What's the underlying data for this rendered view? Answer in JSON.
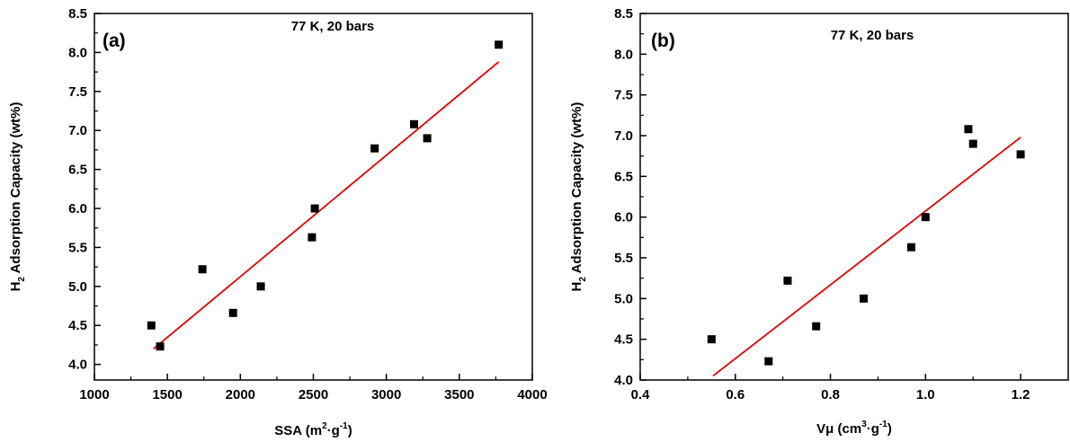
{
  "chart_data": [
    {
      "type": "scatter",
      "panel_label": "(a)",
      "annotation": "77 K, 20 bars",
      "xlabel": {
        "main": "SSA (m",
        "sup1": "2",
        "mid": "·g",
        "sup2": "-1",
        "end": ")"
      },
      "ylabel": {
        "pre": "H",
        "sub": "2",
        "post": " Adsorption Capacity (wt%)"
      },
      "xlim": [
        1000,
        4000
      ],
      "ylim": [
        3.8,
        8.5
      ],
      "xticks": [
        "1000",
        "1500",
        "2000",
        "2500",
        "3000",
        "3500",
        "4000"
      ],
      "yticks": [
        "4.0",
        "4.5",
        "5.0",
        "5.5",
        "6.0",
        "6.5",
        "7.0",
        "7.5",
        "8.0",
        "8.5"
      ],
      "series": [
        {
          "points": [
            [
              1390,
              4.5
            ],
            [
              1450,
              4.23
            ],
            [
              1740,
              5.22
            ],
            [
              1950,
              4.66
            ],
            [
              2140,
              5.0
            ],
            [
              2490,
              5.63
            ],
            [
              2510,
              6.0
            ],
            [
              2920,
              6.77
            ],
            [
              3190,
              7.08
            ],
            [
              3280,
              6.9
            ],
            [
              3770,
              8.1
            ]
          ]
        }
      ],
      "fit_line": {
        "x": [
          1405,
          3770
        ],
        "y": [
          4.2,
          7.88
        ],
        "color": "#e00000"
      },
      "marker_color": "#000000"
    },
    {
      "type": "scatter",
      "panel_label": "(b)",
      "annotation": "77 K, 20 bars",
      "xlabel": {
        "main": "Vμ (cm",
        "sup1": "3",
        "mid": "·g",
        "sup2": "-1",
        "end": ")"
      },
      "ylabel": {
        "pre": "H",
        "sub": "2",
        "post": " Adsorption Capacity (wt%)"
      },
      "xlim": [
        0.4,
        1.3
      ],
      "ylim": [
        4.0,
        8.5
      ],
      "xticks": [
        "0.4",
        "0.6",
        "0.8",
        "1.0",
        "1.2"
      ],
      "yticks": [
        "4.0",
        "4.5",
        "5.0",
        "5.5",
        "6.0",
        "6.5",
        "7.0",
        "7.5",
        "8.0",
        "8.5"
      ],
      "series": [
        {
          "points": [
            [
              0.55,
              4.5
            ],
            [
              0.67,
              4.23
            ],
            [
              0.71,
              5.22
            ],
            [
              0.77,
              4.66
            ],
            [
              0.87,
              5.0
            ],
            [
              0.97,
              5.63
            ],
            [
              1.0,
              6.0
            ],
            [
              1.09,
              7.08
            ],
            [
              1.1,
              6.9
            ],
            [
              1.2,
              6.77
            ]
          ]
        }
      ],
      "fit_line": {
        "x": [
          0.553,
          1.2
        ],
        "y": [
          4.05,
          6.98
        ],
        "color": "#e00000"
      },
      "marker_color": "#000000"
    }
  ]
}
